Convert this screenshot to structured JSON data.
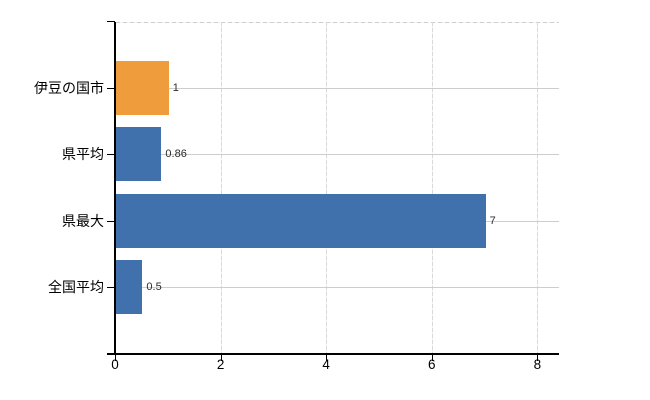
{
  "chart_data": {
    "type": "bar",
    "orientation": "horizontal",
    "title": "",
    "xlabel": "",
    "ylabel": "",
    "categories": [
      "伊豆の国市",
      "県平均",
      "県最大",
      "全国平均"
    ],
    "values": [
      1,
      0.86,
      7,
      0.5
    ],
    "value_labels": [
      "1",
      "0.86",
      "7",
      "0.5"
    ],
    "bar_colors": [
      "#EF9C3C",
      "#4171AD",
      "#4171AD",
      "#4171AD"
    ],
    "x_ticks": [
      0,
      2,
      4,
      6,
      8
    ],
    "x_tick_labels": [
      "0",
      "2",
      "4",
      "6",
      "8"
    ],
    "xlim": [
      0,
      8.4
    ],
    "grid": true,
    "legend": "none"
  },
  "colors": {
    "bar_orange": "#EF9C3C",
    "bar_blue": "#4171AD",
    "grid": "#CBCFCB",
    "axis": "#000000",
    "background": "#FFFFFF"
  }
}
